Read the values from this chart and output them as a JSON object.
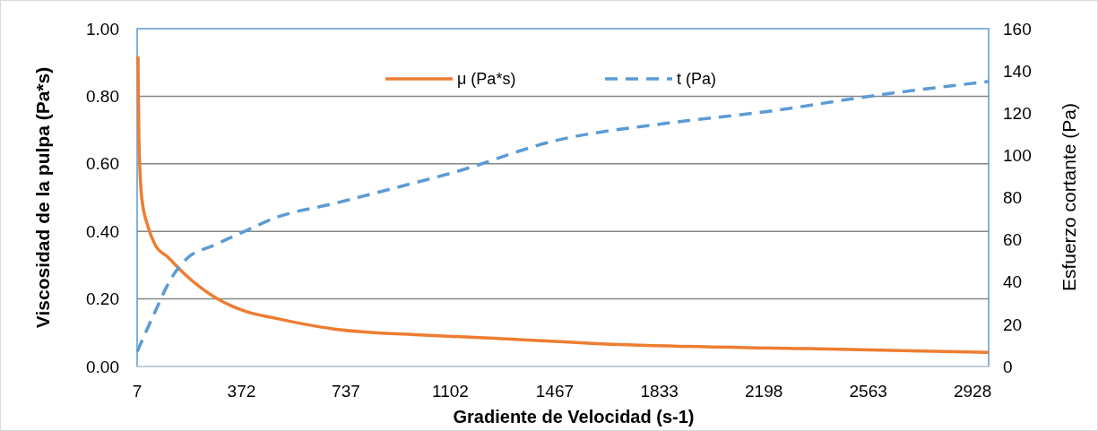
{
  "chart_data": {
    "type": "line",
    "xlabel": "Gradiente de Velocidad (s-1)",
    "ylabel": "Viscosidad de la pulpa (Pa*s)",
    "y2label": "Esfuerzo cortante (Pa)",
    "xlim": [
      7,
      2984
    ],
    "xticks": [
      7,
      372,
      737,
      1102,
      1467,
      1833,
      2198,
      2563,
      2928
    ],
    "ylim": [
      0,
      1
    ],
    "yticks": [
      {
        "value": 0,
        "label": "0.00"
      },
      {
        "value": 0.2,
        "label": "0.20"
      },
      {
        "value": 0.4,
        "label": "0.40"
      },
      {
        "value": 0.6,
        "label": "0.60"
      },
      {
        "value": 0.8,
        "label": "0.80"
      },
      {
        "value": 1,
        "label": "1.00"
      }
    ],
    "y2lim": [
      0,
      160
    ],
    "y2ticks": [
      0,
      20,
      40,
      60,
      80,
      100,
      120,
      140,
      160
    ],
    "grid": "y",
    "legend": "top",
    "series": [
      {
        "name": "μ (Pa*s)",
        "color": "#ed7d31",
        "line_style": "solid",
        "x": [
          10,
          13,
          23,
          45,
          70,
          114,
          176,
          280,
          383,
          490,
          696,
          1010,
          1220,
          1721,
          2348,
          2984
        ],
        "values": [
          0.918,
          0.679,
          0.5,
          0.414,
          0.36,
          0.324,
          0.271,
          0.204,
          0.164,
          0.143,
          0.111,
          0.093,
          0.085,
          0.064,
          0.053,
          0.042
        ]
      },
      {
        "name": "t (Pa)",
        "color": "#5b9bd5",
        "line_style": "dashed",
        "axis": "y2",
        "x": [
          7,
          70,
          123,
          176,
          280,
          383,
          490,
          696,
          906,
          1116,
          1470,
          1846,
          2222,
          2599,
          2984
        ],
        "values": [
          7,
          26,
          41,
          50.5,
          57.7,
          64,
          70.4,
          77.2,
          84.5,
          92,
          107,
          115,
          121,
          128.6,
          135
        ]
      }
    ]
  }
}
